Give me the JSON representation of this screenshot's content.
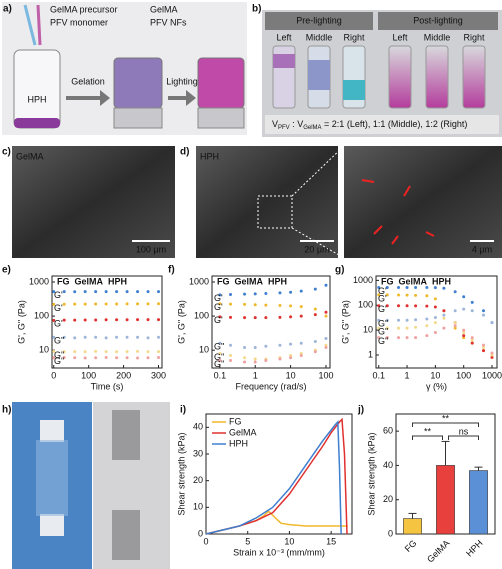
{
  "panels": {
    "a": {
      "letter": "a)",
      "labels": [
        "GelMA precursor",
        "PFV monomer",
        "GelMA",
        "PFV NFs"
      ],
      "vial": "HPH",
      "steps": [
        "Gelation",
        "Lighting"
      ]
    },
    "b": {
      "letter": "b)",
      "headers": [
        "Pre-lighting",
        "Post-lighting"
      ],
      "positions": [
        "Left",
        "Middle",
        "Right"
      ],
      "caption": [
        "V",
        "PFV",
        " : V",
        "GelMA",
        " = 2:1 (Left), 1:1 (Middle), 1:2 (Right)"
      ]
    },
    "c": {
      "letter": "c)",
      "label": "GelMA",
      "scale": "100 μm"
    },
    "d": {
      "letter": "d)",
      "label": "HPH",
      "scales": [
        "20 μm",
        "4 μm"
      ]
    },
    "h": {
      "letter": "h)"
    }
  },
  "chart_data": [
    {
      "type": "scatter",
      "panel": "e)",
      "x_label": "Time (s)",
      "y_label": "G', G'' (Pa)",
      "y_log": true,
      "legend": [
        {
          "name": "FG",
          "color": "#f0b92c"
        },
        {
          "name": "GelMA",
          "color": "#e0302f"
        },
        {
          "name": "HPH",
          "color": "#3f7fd0"
        }
      ],
      "x": [
        0,
        30,
        60,
        90,
        120,
        150,
        180,
        210,
        240,
        270,
        300
      ],
      "xlim": [
        -5,
        310
      ],
      "xticks": [
        0,
        100,
        200,
        300
      ],
      "ylim": [
        3,
        1500
      ],
      "yticks": [
        10,
        100,
        1000
      ],
      "series": [
        {
          "name": "G'",
          "color": "#3f7fd0",
          "values": [
            520,
            520,
            518,
            520,
            521,
            520,
            520,
            522,
            521,
            520,
            520
          ]
        },
        {
          "name": "G'",
          "color": "#f0b92c",
          "values": [
            220,
            222,
            224,
            225,
            226,
            226,
            227,
            228,
            228,
            229,
            230
          ]
        },
        {
          "name": "G'",
          "color": "#e0302f",
          "values": [
            75,
            76,
            76,
            77,
            77,
            78,
            78,
            78,
            79,
            79,
            79
          ]
        },
        {
          "name": "G''",
          "color": "#9db5d8",
          "values": [
            24,
            24,
            23,
            24,
            24,
            23,
            24,
            24,
            24,
            23,
            24
          ]
        },
        {
          "name": "G''",
          "color": "#f3d98a",
          "values": [
            9.2,
            9,
            9.1,
            9,
            9.2,
            9.1,
            9,
            9.1,
            9.2,
            9,
            9.1
          ]
        },
        {
          "name": "G''",
          "color": "#f0a0a0",
          "values": [
            6,
            6.1,
            6,
            5.9,
            6,
            6.1,
            6,
            6,
            5.9,
            6,
            6.1
          ]
        }
      ]
    },
    {
      "type": "scatter",
      "panel": "f)",
      "x_label": "Frequency (rad/s)",
      "y_label": "G', G'' (Pa)",
      "x_log": true,
      "y_log": true,
      "legend": [
        {
          "name": "FG",
          "color": "#f0b92c"
        },
        {
          "name": "GelMA",
          "color": "#e0302f"
        },
        {
          "name": "HPH",
          "color": "#3f7fd0"
        }
      ],
      "x": [
        0.1,
        0.2,
        0.5,
        1,
        2,
        5,
        10,
        20,
        50,
        100
      ],
      "xlim": [
        0.06,
        130
      ],
      "xticks": [
        0.1,
        1,
        10,
        100
      ],
      "ylim": [
        3,
        1500
      ],
      "yticks": [
        10,
        100,
        1000
      ],
      "series": [
        {
          "name": "G'",
          "color": "#3f7fd0",
          "values": [
            420,
            430,
            440,
            450,
            460,
            480,
            500,
            540,
            620,
            800
          ]
        },
        {
          "name": "G'",
          "color": "#f0b92c",
          "values": [
            230,
            225,
            220,
            215,
            210,
            205,
            200,
            190,
            160,
            100
          ]
        },
        {
          "name": "G'",
          "color": "#e0302f",
          "values": [
            95,
            92,
            90,
            90,
            90,
            92,
            95,
            100,
            110,
            130
          ]
        },
        {
          "name": "G''",
          "color": "#9db5d8",
          "values": [
            16,
            14,
            12,
            12,
            13,
            14,
            15,
            16,
            18,
            22
          ]
        },
        {
          "name": "G''",
          "color": "#f3d98a",
          "values": [
            8,
            7,
            6,
            5.5,
            5.5,
            6,
            7,
            8,
            10,
            14
          ]
        },
        {
          "name": "G''",
          "color": "#f0a0a0",
          "values": [
            5,
            5,
            4.5,
            4.5,
            5,
            5.5,
            6,
            7,
            9,
            12
          ]
        }
      ]
    },
    {
      "type": "scatter",
      "panel": "g)",
      "x_label": "γ (%)",
      "y_label": "G', G'' (Pa)",
      "x_log": true,
      "y_log": true,
      "legend": [
        {
          "name": "FG",
          "color": "#f0b92c"
        },
        {
          "name": "GelMA",
          "color": "#e0302f"
        },
        {
          "name": "HPH",
          "color": "#3f7fd0"
        }
      ],
      "x": [
        0.1,
        0.2,
        0.5,
        1,
        2,
        5,
        10,
        20,
        50,
        100,
        200,
        500,
        1000
      ],
      "xlim": [
        0.08,
        1500
      ],
      "xticks": [
        0.1,
        1,
        10,
        100,
        1000
      ],
      "ylim": [
        0.3,
        1500
      ],
      "yticks": [
        1,
        10,
        100,
        1000
      ],
      "series": [
        {
          "name": "G'",
          "color": "#3f7fd0",
          "values": [
            520,
            520,
            520,
            520,
            520,
            520,
            510,
            480,
            350,
            220,
            130,
            60,
            20
          ]
        },
        {
          "name": "G'",
          "color": "#f0b92c",
          "values": [
            260,
            260,
            258,
            255,
            250,
            240,
            180,
            60,
            12,
            5,
            3,
            1.5,
            0.8
          ]
        },
        {
          "name": "G'",
          "color": "#e0302f",
          "values": [
            95,
            95,
            95,
            95,
            94,
            92,
            85,
            60,
            20,
            6,
            3,
            1.5,
            0.8
          ]
        },
        {
          "name": "G''",
          "color": "#9db5d8",
          "values": [
            25,
            25,
            25,
            25,
            26,
            28,
            32,
            40,
            60,
            70,
            60,
            40,
            20
          ]
        },
        {
          "name": "G''",
          "color": "#f3d98a",
          "values": [
            12,
            12,
            12,
            12,
            13,
            15,
            20,
            30,
            20,
            8,
            4,
            2,
            1
          ]
        },
        {
          "name": "G''",
          "color": "#f0a0a0",
          "values": [
            5,
            5,
            5,
            5,
            5,
            6,
            8,
            12,
            15,
            10,
            5,
            2.5,
            1.2
          ]
        }
      ]
    },
    {
      "type": "line",
      "panel": "i)",
      "x_label": "Strain x 10⁻³ (mm/mm)",
      "y_label": "Shear strength (kPa)",
      "xlim": [
        0,
        17.5
      ],
      "xticks": [
        0,
        5,
        10,
        15
      ],
      "ylim": [
        0,
        45
      ],
      "yticks": [
        0,
        10,
        20,
        30,
        40
      ],
      "series": [
        {
          "name": "FG",
          "color": "#f0b92c",
          "x": [
            0,
            2,
            4,
            6,
            7,
            7.5,
            8,
            9,
            10,
            12,
            14,
            16,
            17
          ],
          "values": [
            0,
            1.5,
            3,
            5,
            7,
            8.5,
            7,
            4,
            3.5,
            3,
            3,
            3,
            3
          ]
        },
        {
          "name": "GelMA",
          "color": "#e0302f",
          "x": [
            0,
            2,
            4,
            6,
            8,
            10,
            12,
            14,
            15,
            16,
            16.3,
            16.6,
            16.9
          ],
          "values": [
            0,
            1.5,
            3,
            5,
            8,
            15,
            24,
            33,
            38,
            42,
            43,
            30,
            0
          ]
        },
        {
          "name": "HPH",
          "color": "#3f7fd0",
          "x": [
            0,
            2,
            4,
            6,
            8,
            10,
            12,
            14,
            15,
            15.5,
            15.8,
            16,
            16.2
          ],
          "values": [
            0,
            1.5,
            3,
            6,
            10,
            17,
            26,
            35,
            39,
            41,
            42,
            25,
            0
          ]
        }
      ]
    },
    {
      "type": "bar",
      "panel": "j)",
      "y_label": "Shear strength (kPa)",
      "categories": [
        "FG",
        "GelMA",
        "HPH"
      ],
      "values": [
        9,
        40,
        37
      ],
      "errors": [
        3,
        14,
        2
      ],
      "colors": [
        "#f5c542",
        "#e8403d",
        "#5b8fd6"
      ],
      "ylim": [
        0,
        70
      ],
      "yticks": [
        0,
        20,
        40,
        60
      ],
      "annotations": [
        "**",
        "**",
        "ns"
      ]
    }
  ]
}
